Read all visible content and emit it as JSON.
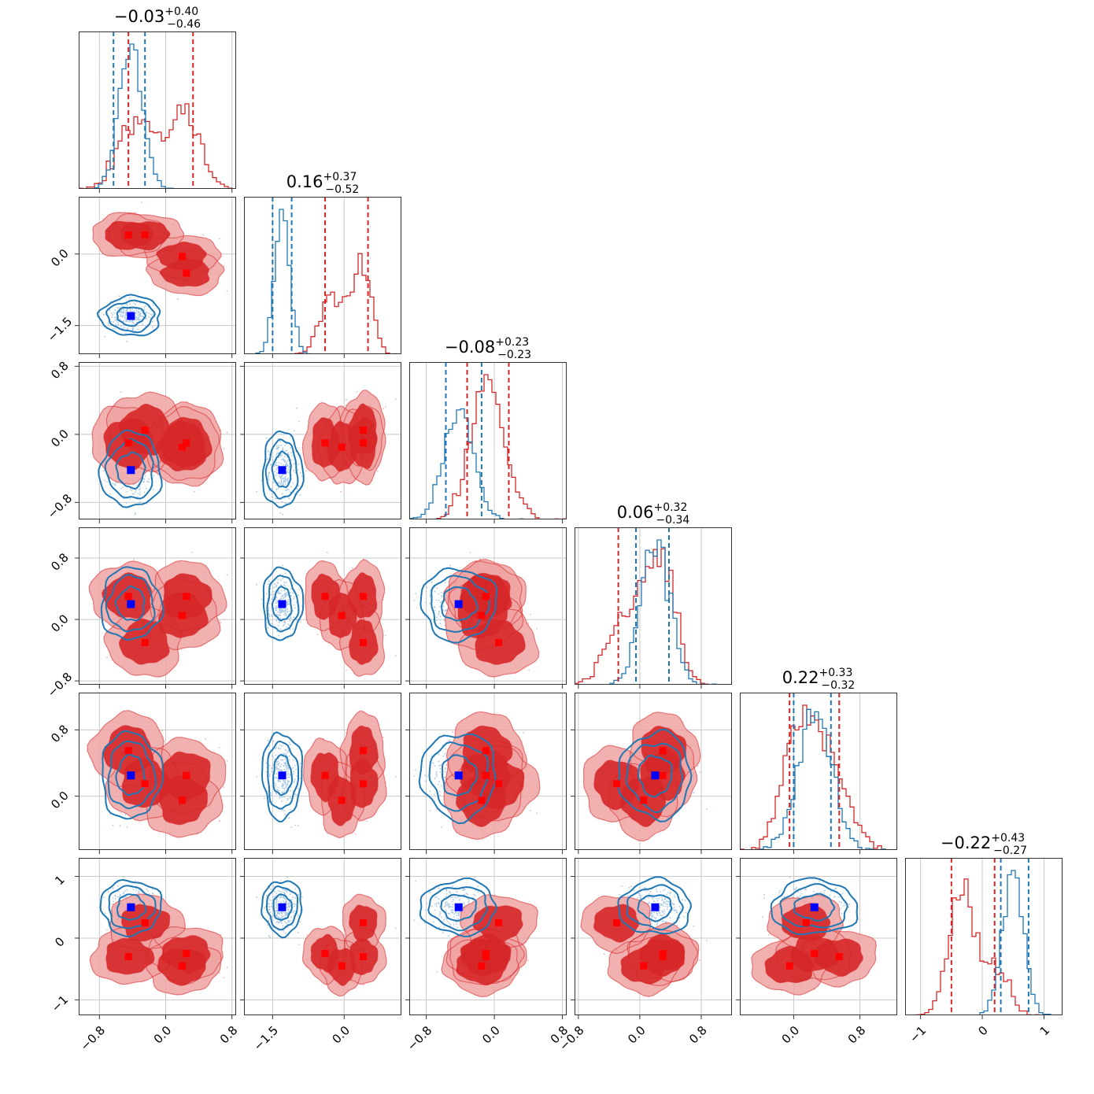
{
  "chart_data": {
    "type": "corner",
    "n_params": 6,
    "colors": {
      "red": "#d62728",
      "blue": "#1f77b4",
      "red_marker": "#ff0000",
      "blue_marker": "#0000ff",
      "grid": "#c8c8c8"
    },
    "titles": [
      {
        "main": "−0.03",
        "sup": "+0.40",
        "sub": "−0.46"
      },
      {
        "main": "0.16",
        "sup": "+0.37",
        "sub": "−0.52"
      },
      {
        "main": "−0.08",
        "sup": "+0.23",
        "sub": "−0.23"
      },
      {
        "main": "0.06",
        "sup": "+0.32",
        "sub": "−0.34"
      },
      {
        "main": "0.22",
        "sup": "+0.33",
        "sub": "−0.32"
      },
      {
        "main": "−0.22",
        "sup": "+0.43",
        "sub": "−0.27"
      }
    ],
    "ranges": [
      [
        -1.05,
        0.85
      ],
      [
        -2.1,
        1.2
      ],
      [
        -1.0,
        0.85
      ],
      [
        -0.85,
        1.2
      ],
      [
        -0.65,
        1.25
      ],
      [
        -1.25,
        1.3
      ]
    ],
    "ticks": [
      {
        "values": [
          -0.8,
          0.0,
          0.8
        ],
        "labels": [
          "−0.8",
          "0.0",
          "0.8"
        ]
      },
      {
        "values": [
          -1.5,
          0.0
        ],
        "labels": [
          "−1.5",
          "0.0"
        ]
      },
      {
        "values": [
          -0.8,
          0.0,
          0.8
        ],
        "labels": [
          "−0.8",
          "0.0",
          "0.8"
        ]
      },
      {
        "values": [
          -0.8,
          0.0,
          0.8
        ],
        "labels": [
          "−0.8",
          "0.0",
          "0.8"
        ]
      },
      {
        "values": [
          0.0,
          0.8
        ],
        "labels": [
          "0.0",
          "0.8"
        ]
      },
      {
        "values": [
          -1,
          0,
          1
        ],
        "labels": [
          "−1",
          "0",
          "1"
        ]
      }
    ],
    "red_components": [
      [
        -0.45,
        0.4,
        -0.1,
        0.3,
        0.55,
        -0.3
      ],
      [
        -0.25,
        0.4,
        0.05,
        -0.3,
        0.15,
        0.25
      ],
      [
        0.2,
        -0.05,
        -0.15,
        0.05,
        -0.05,
        -0.45
      ],
      [
        0.25,
        -0.4,
        -0.1,
        0.3,
        0.25,
        -0.25
      ]
    ],
    "blue_center": [
      -0.42,
      -1.3,
      -0.42,
      0.2,
      0.25,
      0.5
    ],
    "blue_sigma": [
      0.14,
      0.16,
      0.17,
      0.18,
      0.2,
      0.17
    ],
    "red_quantiles": [
      [
        -0.45,
        0.33
      ],
      [
        -0.4,
        0.5
      ],
      [
        -0.32,
        0.17
      ],
      [
        -0.28,
        0.38
      ],
      [
        -0.05,
        0.55
      ],
      [
        -0.5,
        0.2
      ]
    ],
    "blue_quantiles": [
      [
        -0.63,
        -0.25
      ],
      [
        -1.5,
        -1.1
      ],
      [
        -0.57,
        -0.15
      ],
      [
        -0.05,
        0.38
      ],
      [
        0.0,
        0.45
      ],
      [
        0.3,
        0.75
      ]
    ]
  }
}
